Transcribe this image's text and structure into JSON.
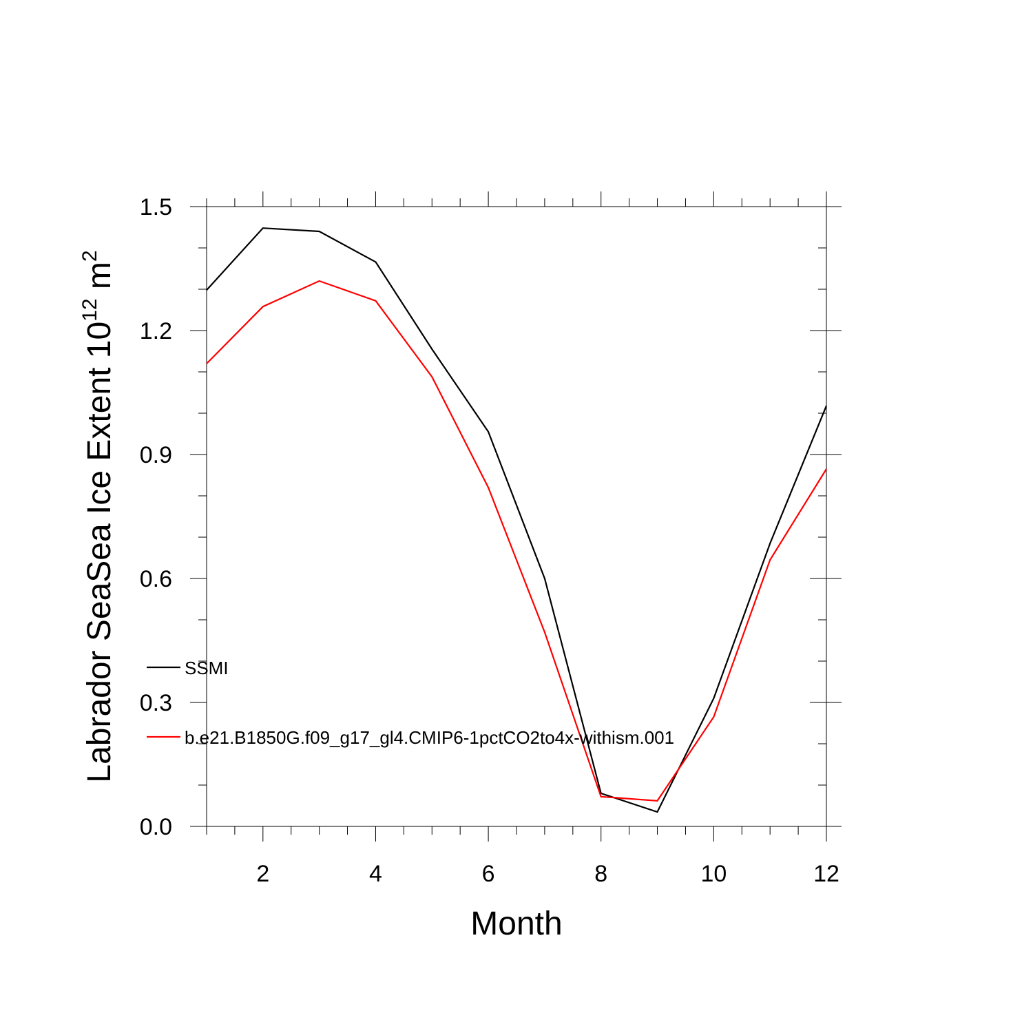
{
  "chart_data": {
    "type": "line",
    "title": "",
    "xlabel": "Month",
    "ylabel": {
      "prefix": "Labrador SeaSea Ice Extent 10",
      "superscript": "12",
      "unit": " m",
      "unit_superscript": "2"
    },
    "xlim": [
      1,
      12
    ],
    "ylim": [
      0,
      1.5
    ],
    "x_ticks": [
      2,
      4,
      6,
      8,
      10,
      12
    ],
    "x_tick_labels": [
      "2",
      "4",
      "6",
      "8",
      "10",
      "12"
    ],
    "y_ticks": [
      0,
      0.3,
      0.6,
      0.9,
      1.2,
      1.5
    ],
    "y_tick_labels": [
      "0.0",
      "0.3",
      "0.6",
      "0.9",
      "1.2",
      "1.5"
    ],
    "grid": false,
    "legend_position": "left",
    "x": [
      1,
      2,
      3,
      4,
      5,
      6,
      7,
      8,
      9,
      10,
      11,
      12
    ],
    "series": [
      {
        "name": "SSMI",
        "color": "#000000",
        "values": [
          1.298,
          1.448,
          1.44,
          1.366,
          1.155,
          0.955,
          0.6,
          0.08,
          0.035,
          0.31,
          0.685,
          1.018
        ]
      },
      {
        "name": "b.e21.B1850G.f09_g17_gl4.CMIP6-1pctCO2to4x-withism.001",
        "color": "#ff0000",
        "values": [
          1.12,
          1.258,
          1.32,
          1.272,
          1.088,
          0.82,
          0.47,
          0.072,
          0.062,
          0.265,
          0.645,
          0.865
        ]
      }
    ]
  }
}
